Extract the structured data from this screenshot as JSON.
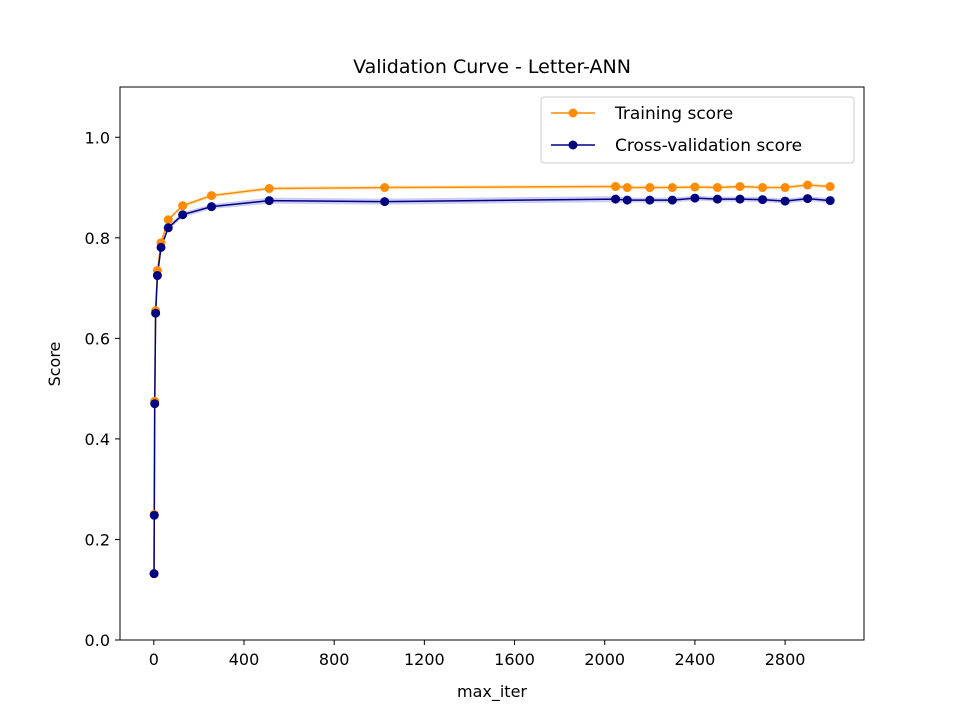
{
  "chart_data": {
    "type": "line",
    "title": "Validation Curve - Letter-ANN",
    "xlabel": "max_iter",
    "ylabel": "Score",
    "xlim": [
      -150,
      3150
    ],
    "ylim": [
      0.0,
      1.1
    ],
    "xticks": [
      0,
      400,
      800,
      1200,
      1600,
      2000,
      2400,
      2800
    ],
    "yticks": [
      0.0,
      0.2,
      0.4,
      0.6,
      0.8,
      1.0
    ],
    "x": [
      1,
      2,
      4,
      8,
      16,
      32,
      64,
      128,
      256,
      512,
      1024,
      2048,
      2100,
      2200,
      2300,
      2400,
      2500,
      2600,
      2700,
      2800,
      2900,
      3000
    ],
    "series": [
      {
        "name": "Training score",
        "color": "#ff8c00",
        "band_color": "#ffa500",
        "values": [
          0.132,
          0.25,
          0.475,
          0.655,
          0.735,
          0.79,
          0.836,
          0.864,
          0.884,
          0.898,
          0.9,
          0.902,
          0.9,
          0.9,
          0.9,
          0.901,
          0.9,
          0.902,
          0.9,
          0.9,
          0.905,
          0.902
        ],
        "spread": [
          0.025,
          0.008,
          0.008,
          0.006,
          0.005,
          0.005,
          0.004,
          0.004,
          0.004,
          0.004,
          0.004,
          0.004,
          0.004,
          0.004,
          0.004,
          0.004,
          0.004,
          0.004,
          0.004,
          0.004,
          0.004,
          0.004
        ]
      },
      {
        "name": "Cross-validation score",
        "color": "#000080",
        "band_color": "#0000cd",
        "values": [
          0.132,
          0.248,
          0.47,
          0.65,
          0.725,
          0.781,
          0.82,
          0.846,
          0.862,
          0.874,
          0.872,
          0.877,
          0.875,
          0.875,
          0.875,
          0.879,
          0.877,
          0.877,
          0.876,
          0.873,
          0.878,
          0.874
        ],
        "spread": [
          0.02,
          0.008,
          0.008,
          0.006,
          0.005,
          0.005,
          0.005,
          0.005,
          0.005,
          0.006,
          0.006,
          0.006,
          0.005,
          0.005,
          0.005,
          0.005,
          0.005,
          0.005,
          0.005,
          0.005,
          0.005,
          0.005
        ]
      }
    ],
    "grid": false,
    "legend_position": "top-right"
  }
}
